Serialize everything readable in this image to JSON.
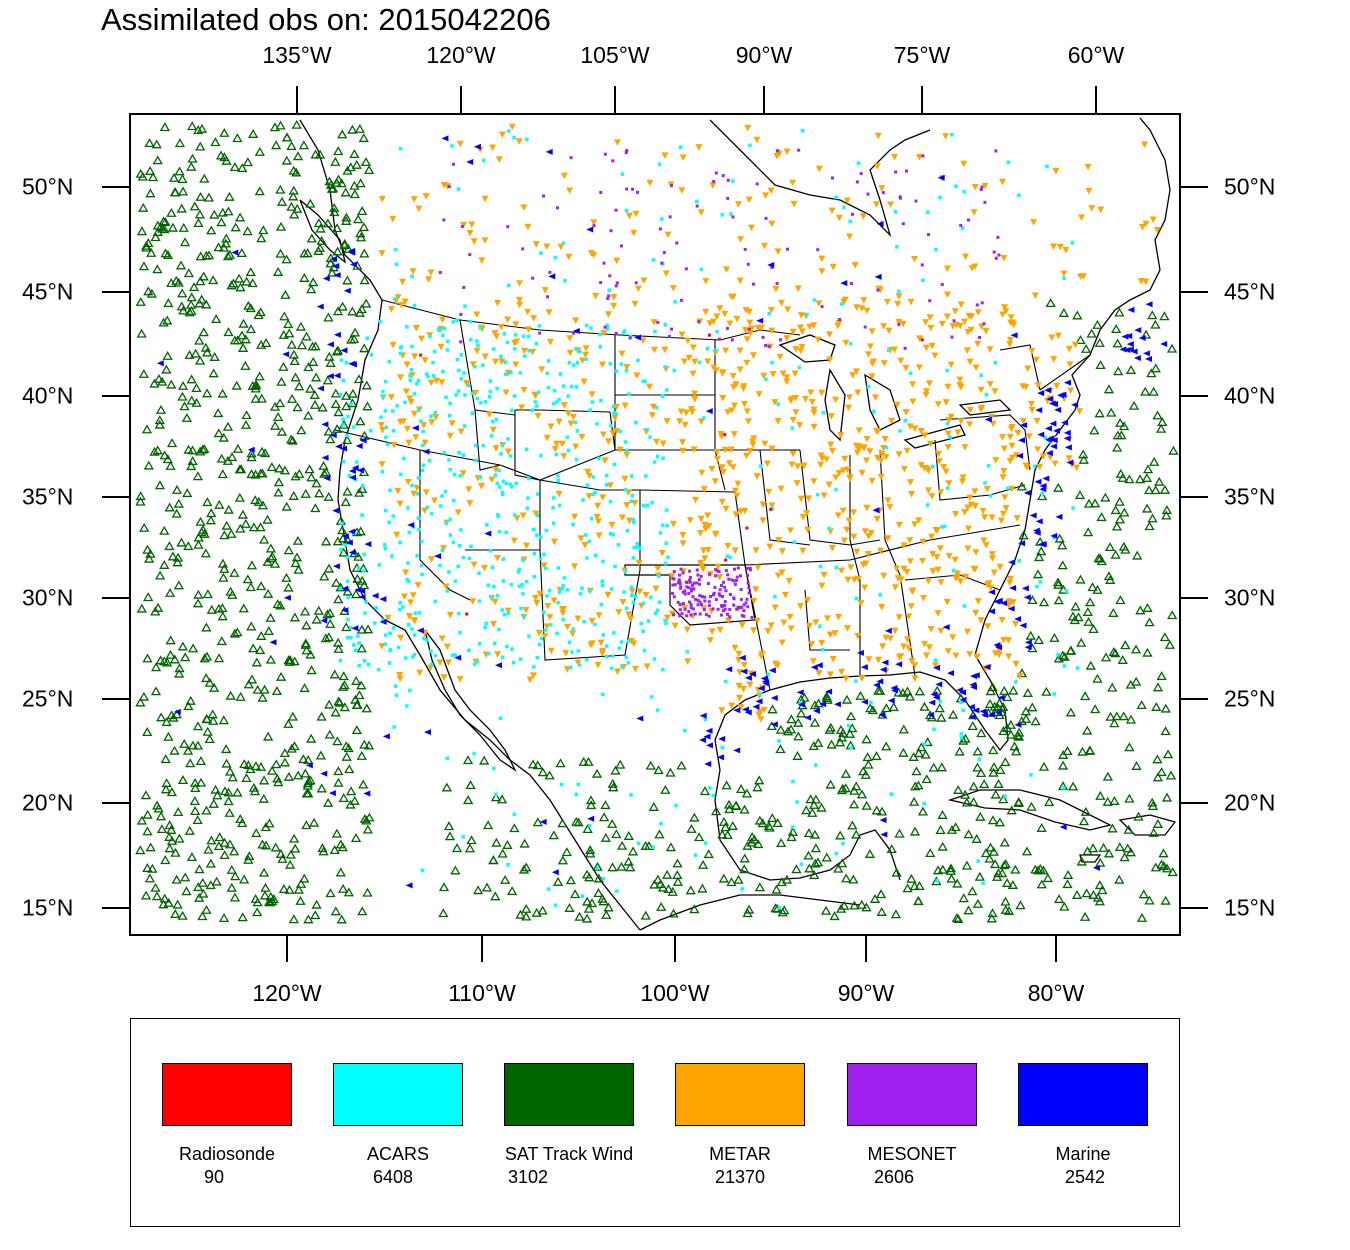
{
  "title": "Assimilated obs on: 2015042206",
  "axes": {
    "top_lon_labels": [
      "135°W",
      "120°W",
      "105°W",
      "90°W",
      "75°W",
      "60°W"
    ],
    "bottom_lon_labels": [
      "120°W",
      "110°W",
      "100°W",
      "90°W",
      "80°W"
    ],
    "lat_labels": [
      "50°N",
      "45°N",
      "40°N",
      "35°N",
      "30°N",
      "25°N",
      "20°N",
      "15°N"
    ]
  },
  "legend": [
    {
      "name": "Radiosonde",
      "count": "90",
      "color": "#ff0000",
      "icon": "red-swatch"
    },
    {
      "name": "ACARS",
      "count": "6408",
      "color": "#00ffff",
      "icon": "cyan-swatch"
    },
    {
      "name": "SAT Track Wind",
      "count": "3102",
      "color": "#006400",
      "icon": "green-swatch"
    },
    {
      "name": "METAR",
      "count": "21370",
      "color": "#ffa500",
      "icon": "orange-swatch"
    },
    {
      "name": "MESONET",
      "count": "2606",
      "color": "#a020f0",
      "icon": "purple-swatch"
    },
    {
      "name": "Marine",
      "count": "2542",
      "color": "#0000ff",
      "icon": "blue-swatch"
    }
  ]
}
